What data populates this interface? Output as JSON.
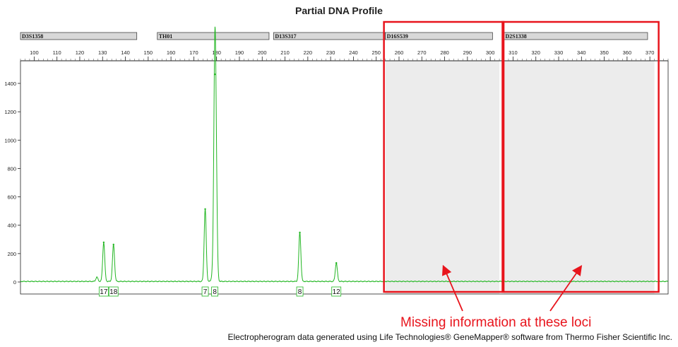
{
  "title": "Partial DNA Profile",
  "caption": "Electropherogram data generated using Life Technologies® GeneMapper® software from Thermo Fisher Scientific Inc.",
  "annotation": "Missing information at these loci",
  "colors": {
    "trace": "#22b622",
    "highlight": "#e8141c",
    "shade": "#ececec",
    "locus_bar": "#d8d8d8"
  },
  "chart_data": {
    "type": "line",
    "title": "Partial DNA Profile",
    "x_ticks": [
      100,
      110,
      120,
      130,
      140,
      150,
      160,
      170,
      180,
      190,
      200,
      210,
      220,
      230,
      240,
      250,
      260,
      270,
      280,
      290,
      300,
      310,
      320,
      330,
      340,
      350,
      360,
      370
    ],
    "y_ticks": [
      0,
      200,
      400,
      600,
      800,
      1000,
      1200,
      1400
    ],
    "xlim": [
      94,
      378
    ],
    "ylim": [
      0,
      1520
    ],
    "grid": false,
    "loci": [
      {
        "name": "D3S1358",
        "start": 94,
        "end": 145
      },
      {
        "name": "TH01",
        "start": 154,
        "end": 203
      },
      {
        "name": "D13S317",
        "start": 205,
        "end": 254
      },
      {
        "name": "D16S539",
        "start": 254,
        "end": 301
      },
      {
        "name": "D2S1338",
        "start": 306,
        "end": 369
      }
    ],
    "missing_loci": [
      "D16S539",
      "D2S1338"
    ],
    "peaks": [
      {
        "x": 130.5,
        "height": 275,
        "allele": "17"
      },
      {
        "x": 134.8,
        "height": 260,
        "allele": "18"
      },
      {
        "x": 175.0,
        "height": 510,
        "allele": "7"
      },
      {
        "x": 179.2,
        "height": 1460,
        "allele": "8"
      },
      {
        "x": 216.5,
        "height": 345,
        "allele": "8"
      },
      {
        "x": 232.5,
        "height": 130,
        "allele": "12"
      }
    ],
    "minor_features": [
      {
        "x": 127.5,
        "height": 30
      },
      {
        "x": 178.3,
        "height": 60
      },
      {
        "x": 179.8,
        "height": 680
      }
    ]
  }
}
